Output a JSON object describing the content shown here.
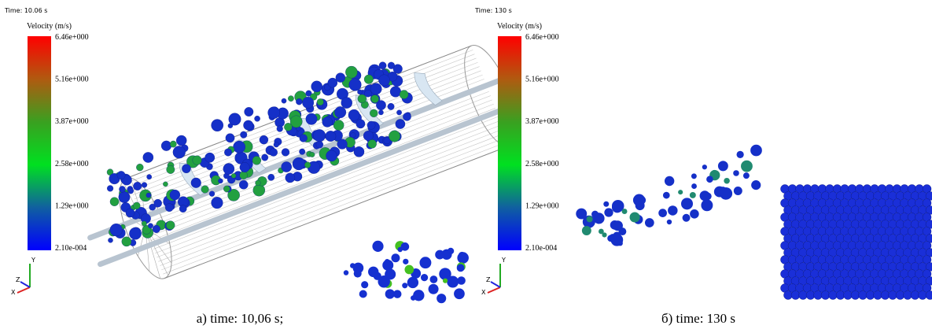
{
  "panels": [
    {
      "time": "Time: 10.06 s",
      "legend_title": "Velocity (m/s)",
      "legend_labels": [
        "6.46e+000",
        "5.16e+000",
        "3.87e+000",
        "2.58e+000",
        "1.29e+000",
        "2.10e-004"
      ],
      "axes": [
        "Y",
        "Z",
        "X"
      ],
      "caption": "a) time: 10,06 s;"
    },
    {
      "time": "Time: 130 s",
      "legend_title": "Velocity (m/s)",
      "legend_labels": [
        "6.46e+000",
        "5.16e+000",
        "3.87e+000",
        "2.58e+000",
        "1.29e+000",
        "2.10e-004"
      ],
      "axes": [
        "Y",
        "Z",
        "X"
      ],
      "caption": "б) time: 130 s"
    }
  ]
}
